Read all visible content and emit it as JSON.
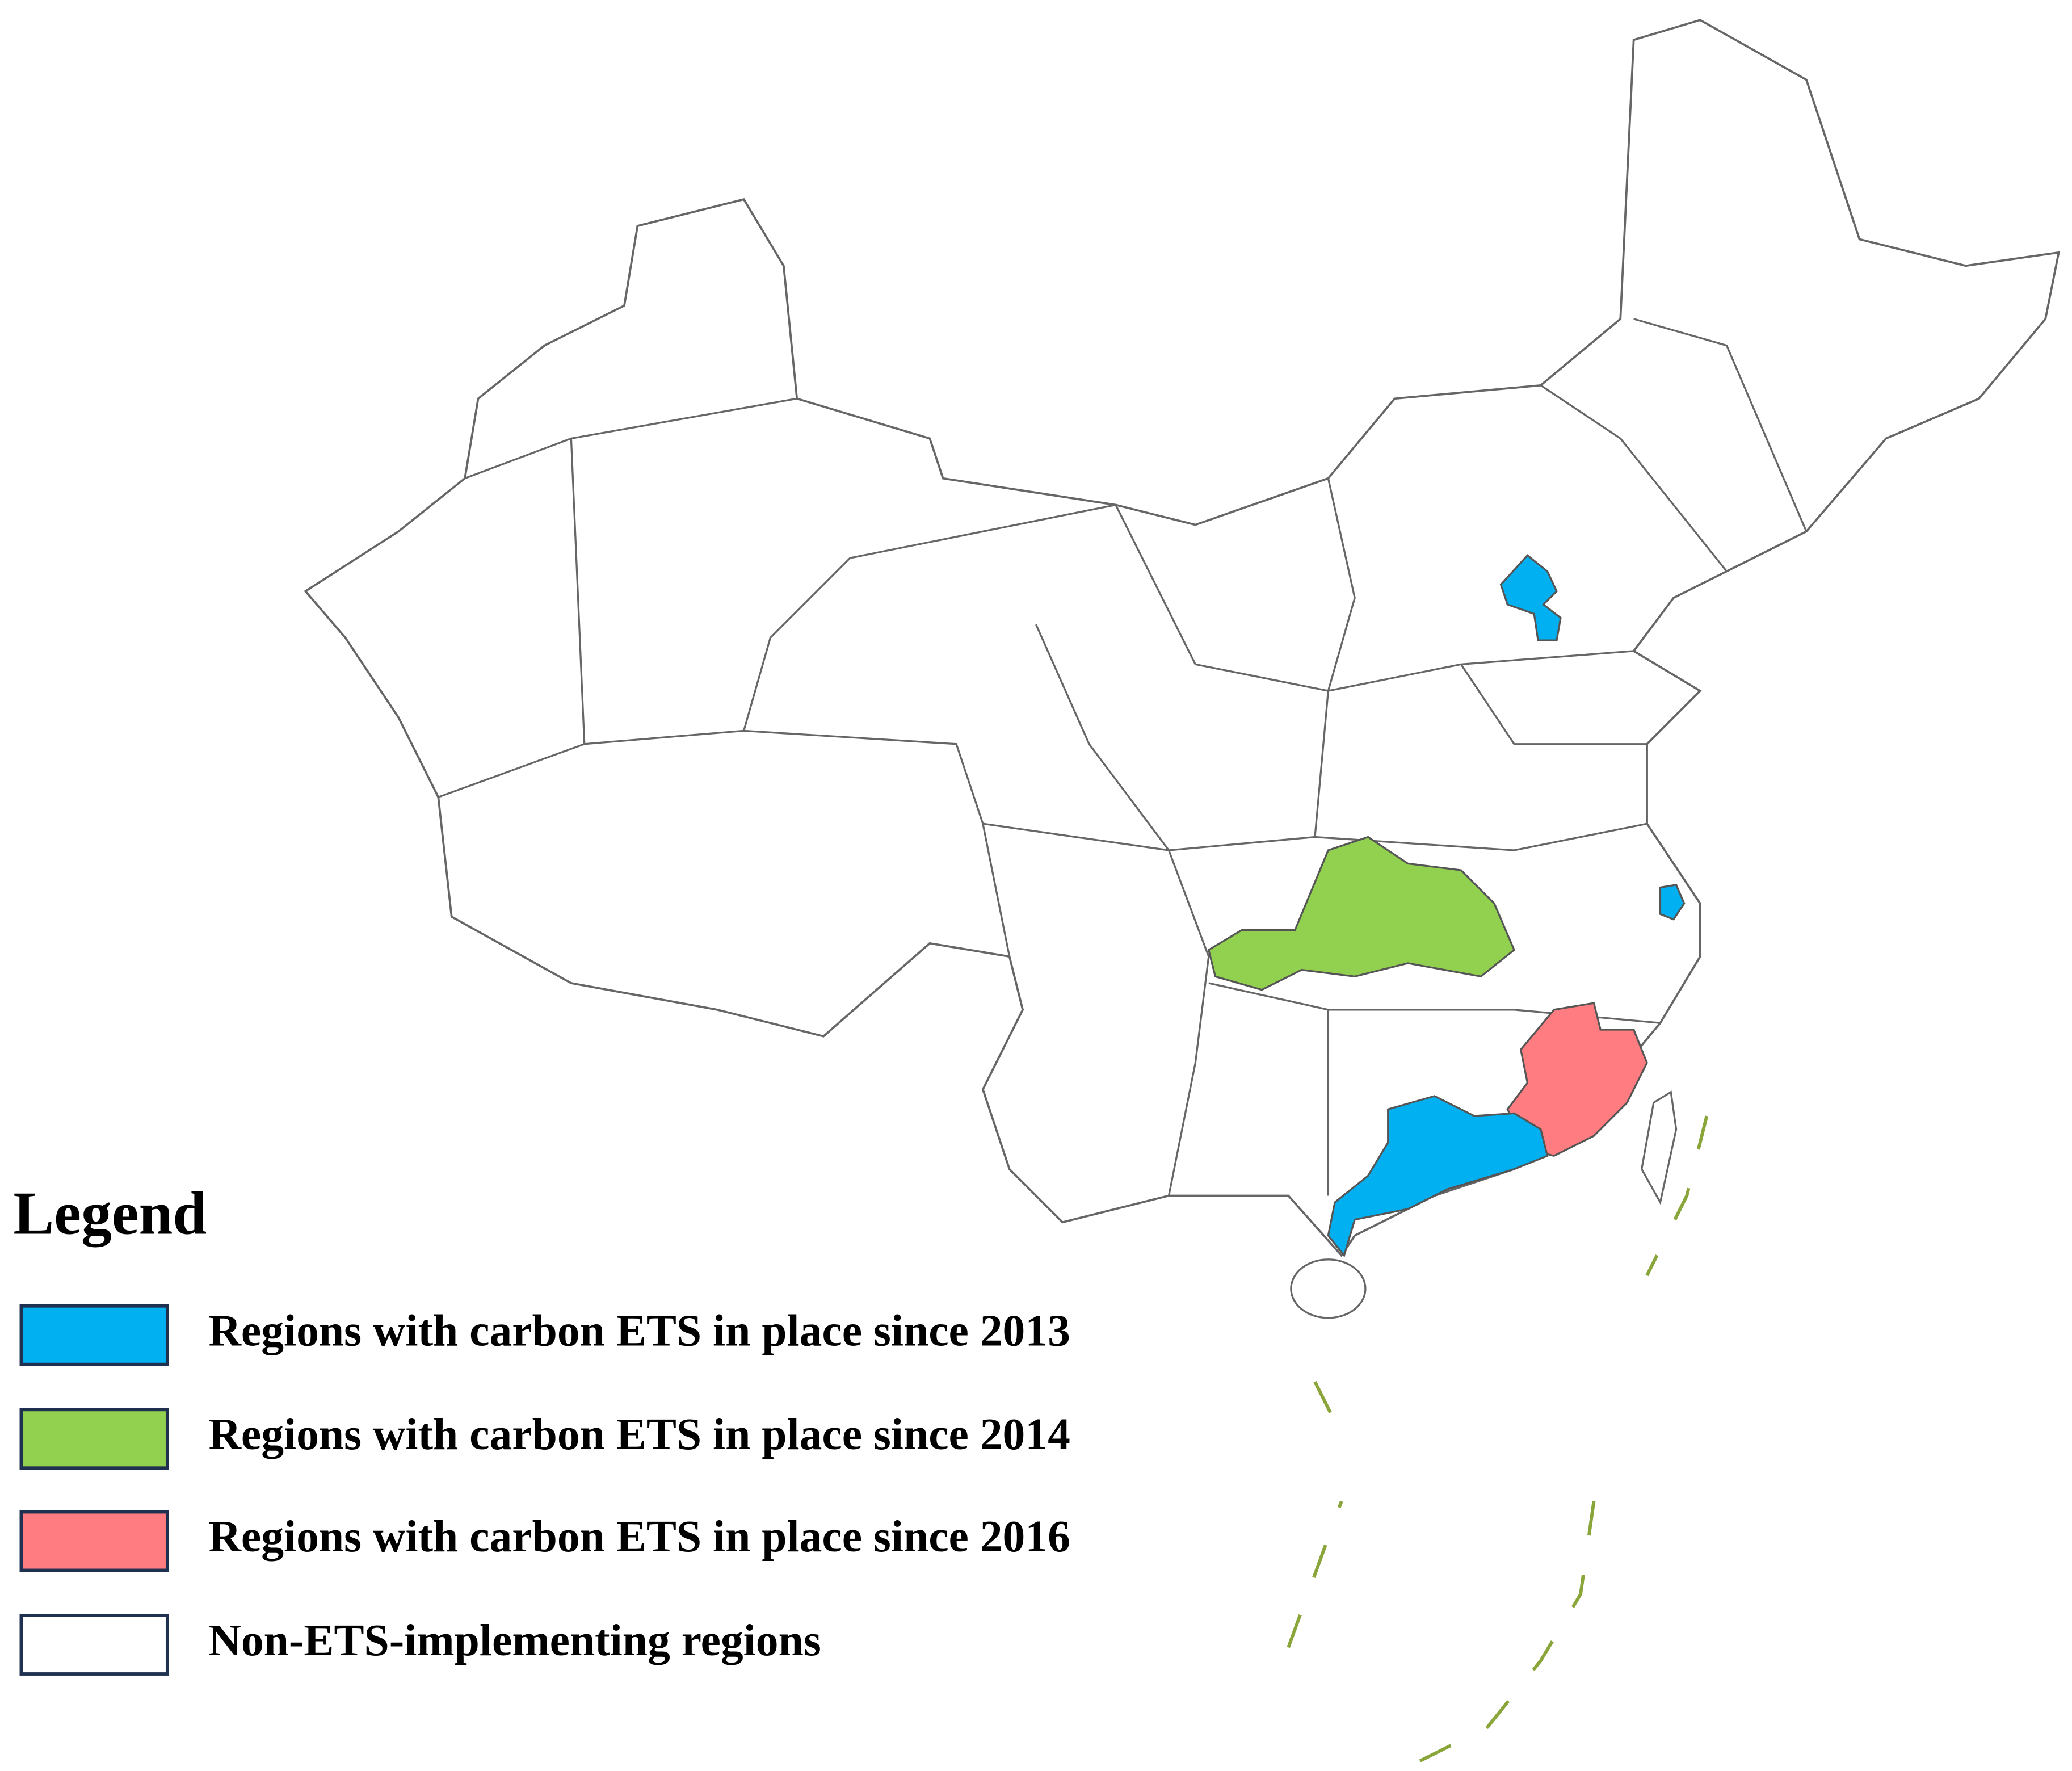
{
  "legend": {
    "title": "Legend",
    "items": [
      {
        "label": "Regions with carbon ETS in place since 2013",
        "color": "#00b0f0"
      },
      {
        "label": "Regions with carbon ETS in place since 2014",
        "color": "#92d050"
      },
      {
        "label": "Regions with carbon ETS in place since 2016",
        "color": "#ff7c80"
      },
      {
        "label": "Non-ETS-implementing regions",
        "color": "#ffffff"
      }
    ]
  }
}
